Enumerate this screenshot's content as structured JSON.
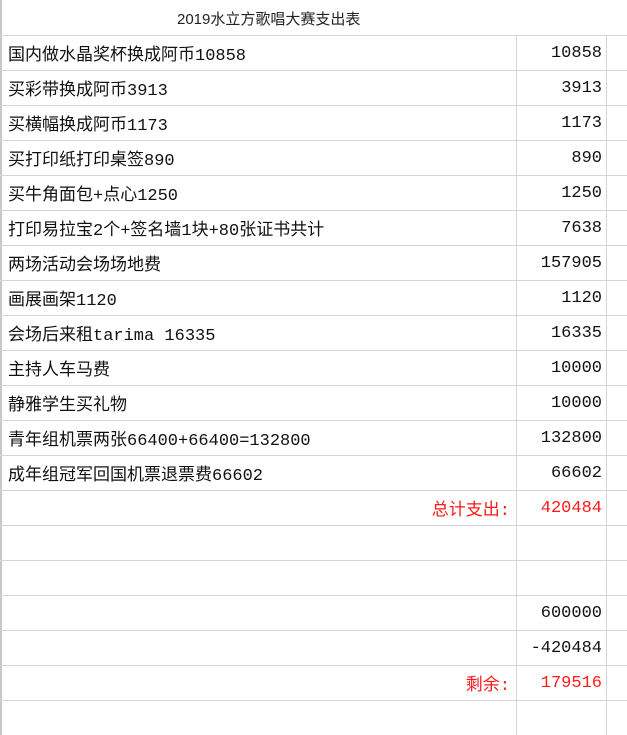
{
  "title": "2019水立方歌唱大赛支出表",
  "items": [
    {
      "label": "国内做水晶奖杯换成阿币10858",
      "amount": "10858"
    },
    {
      "label": "买彩带换成阿币3913",
      "amount": "3913"
    },
    {
      "label": "买横幅换成阿币1173",
      "amount": "1173"
    },
    {
      "label": "买打印纸打印桌签890",
      "amount": "890"
    },
    {
      "label": "买牛角面包+点心1250",
      "amount": "1250"
    },
    {
      "label": "打印易拉宝2个+签名墙1块+80张证书共计",
      "amount": "7638"
    },
    {
      "label": "两场活动会场场地费",
      "amount": "157905"
    },
    {
      "label": "画展画架1120",
      "amount": "1120"
    },
    {
      "label": "会场后来租tarima 16335",
      "amount": "16335"
    },
    {
      "label": "主持人车马费",
      "amount": "10000"
    },
    {
      "label": "静雅学生买礼物",
      "amount": "10000"
    },
    {
      "label": "青年组机票两张66400+66400=132800",
      "amount": "132800"
    },
    {
      "label": "成年组冠军回国机票退票费66602",
      "amount": "66602"
    }
  ],
  "total": {
    "label": "总计支出:",
    "amount": "420484"
  },
  "income": "600000",
  "minus": "-420484",
  "remaining": {
    "label": "剩余:",
    "amount": "179516"
  },
  "colors": {
    "highlight": "#ff1a1a",
    "grid": "#d4d4d4"
  }
}
